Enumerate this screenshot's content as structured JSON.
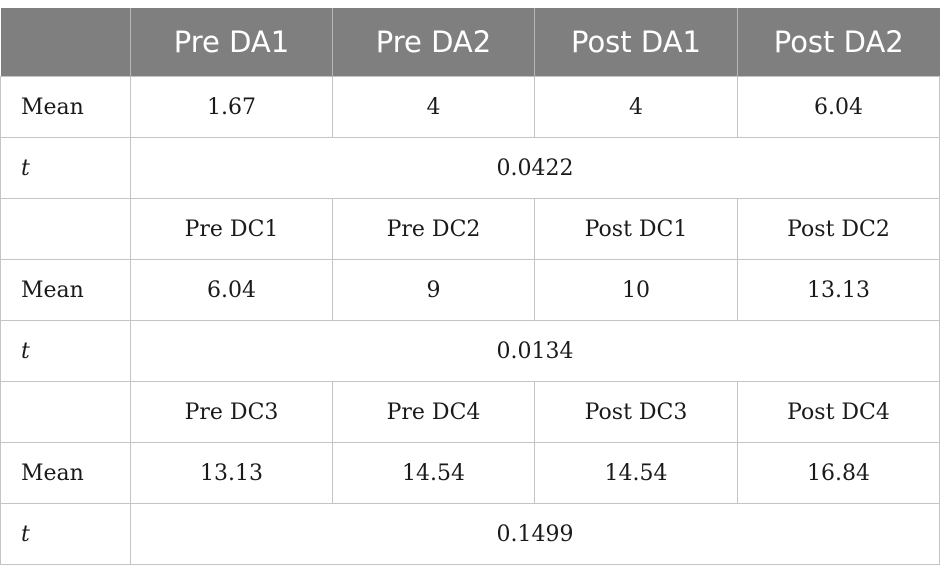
{
  "header": [
    "",
    "Pre DA1",
    "Pre DA2",
    "Post DA1",
    "Post DA2"
  ],
  "blocks": [
    {
      "mean_label": "Mean",
      "means": [
        "1.67",
        "4",
        "4",
        "6.04"
      ],
      "t_label": "t",
      "t_value": "0.0422"
    },
    {
      "subheaders": [
        "Pre DC1",
        "Pre DC2",
        "Post DC1",
        "Post DC2"
      ],
      "mean_label": "Mean",
      "means": [
        "6.04",
        "9",
        "10",
        "13.13"
      ],
      "t_label": "t",
      "t_value": "0.0134"
    },
    {
      "subheaders": [
        "Pre DC3",
        "Pre DC4",
        "Post DC3",
        "Post DC4"
      ],
      "mean_label": "Mean",
      "means": [
        "13.13",
        "14.54",
        "14.54",
        "16.84"
      ],
      "t_label": "t",
      "t_value": "0.1499"
    }
  ]
}
